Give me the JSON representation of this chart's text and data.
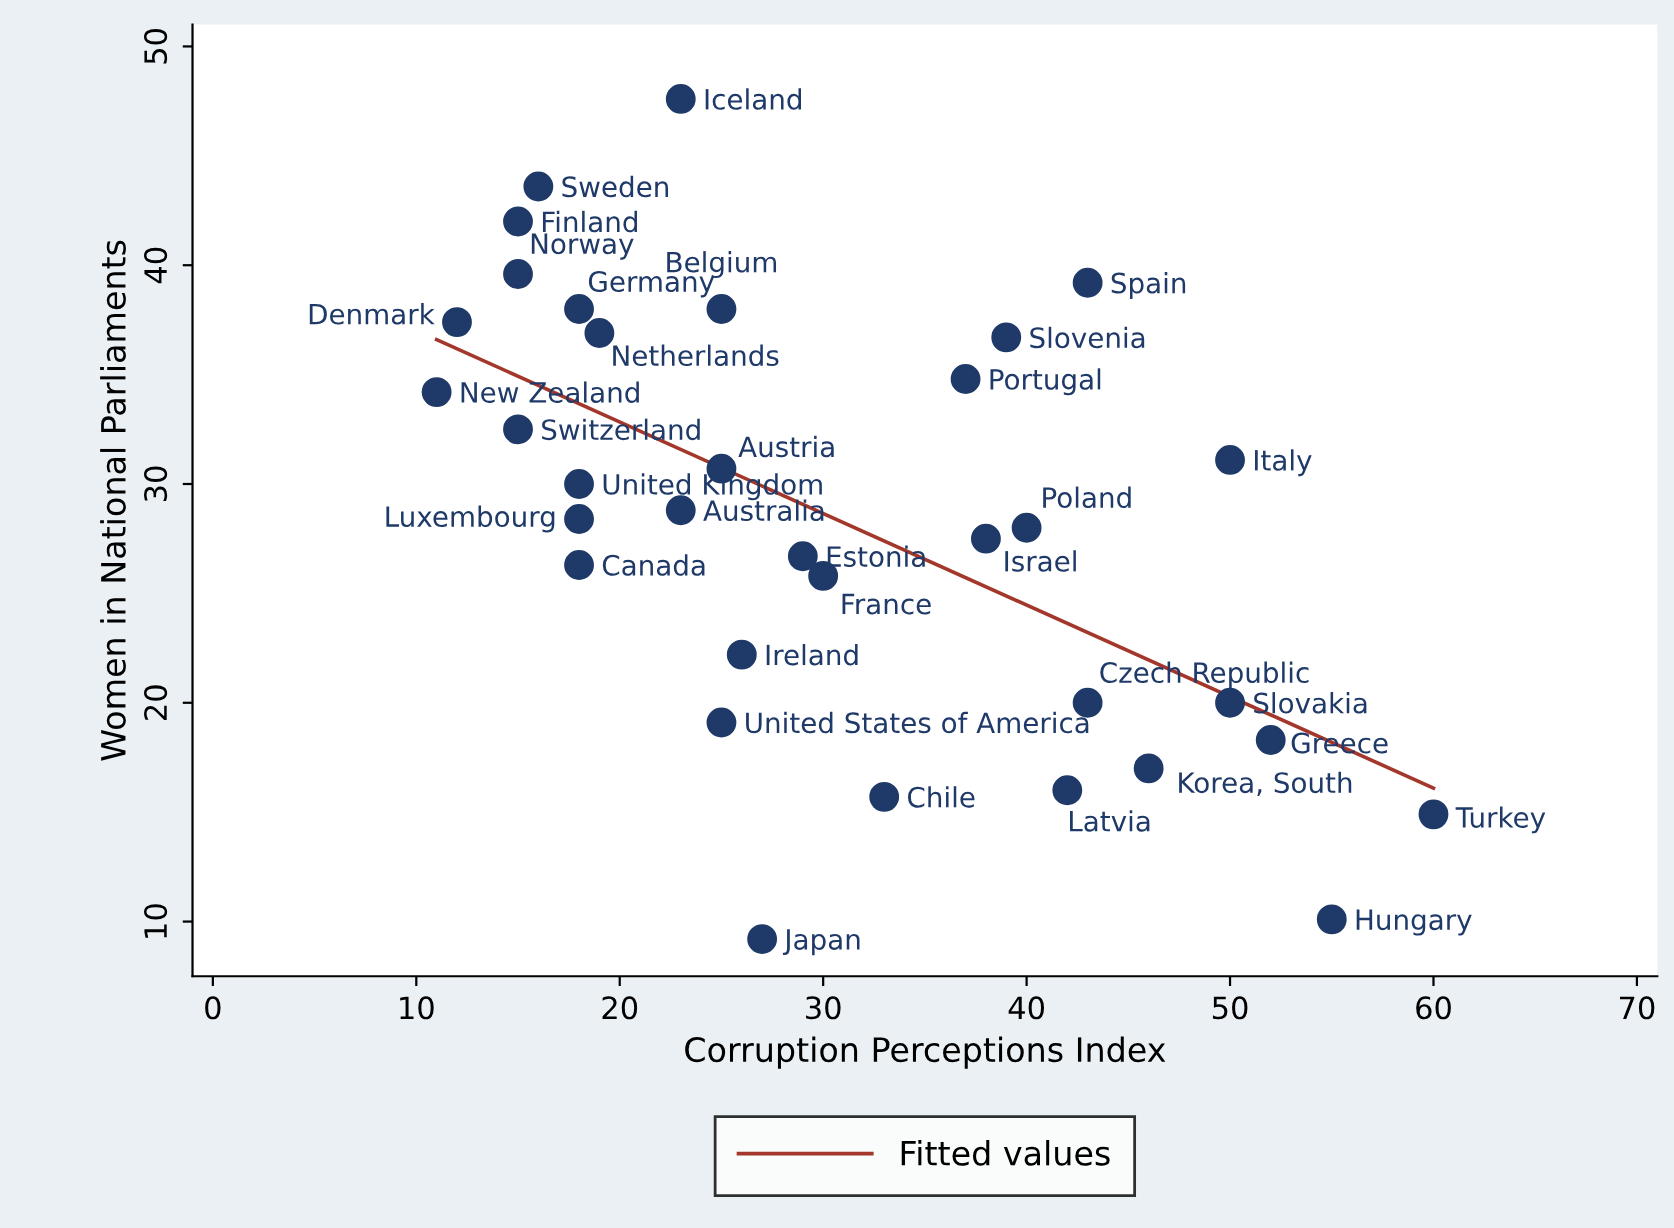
{
  "chart_data": {
    "type": "scatter",
    "xlabel": "Corruption Perceptions Index",
    "ylabel": "Women in National Parliaments",
    "xlim": [
      -1,
      71
    ],
    "xticks": [
      0,
      10,
      20,
      30,
      40,
      50,
      60,
      70
    ],
    "ylim": [
      7.5,
      51
    ],
    "yticks": [
      10,
      20,
      30,
      40,
      50
    ],
    "grid": false,
    "legend": "bottom",
    "marker": "circle",
    "series": [
      {
        "color": "#1f3a68",
        "x": [
          23,
          16,
          15,
          15,
          18,
          19,
          25,
          12,
          11,
          15,
          43,
          39,
          37,
          50,
          25,
          18,
          18,
          23,
          40,
          38,
          18,
          29,
          30,
          26,
          43,
          50,
          52,
          25,
          46,
          42,
          33,
          60,
          55,
          27
        ],
        "values": [
          47.6,
          43.6,
          42.0,
          39.6,
          38.0,
          36.9,
          38.0,
          37.4,
          34.2,
          32.5,
          39.2,
          36.7,
          34.8,
          31.1,
          30.7,
          30.0,
          28.4,
          28.8,
          28.0,
          27.5,
          26.3,
          26.7,
          25.8,
          22.2,
          20.0,
          20.0,
          18.3,
          19.1,
          17.0,
          16.0,
          15.7,
          14.9,
          10.1,
          9.2
        ]
      },
      {
        "type": "line",
        "name": "Fitted values",
        "color": "#a3372b",
        "x": [
          11,
          60
        ],
        "values": [
          36.6,
          16.1
        ],
        "marker": "none"
      }
    ],
    "annotations": [
      {
        "text": "Iceland",
        "x": 23,
        "y": 47.6
      },
      {
        "text": "Sweden",
        "x": 16,
        "y": 43.6
      },
      {
        "text": "Finland",
        "x": 15,
        "y": 42.0
      },
      {
        "text": "Norway",
        "x": 15,
        "y": 39.6
      },
      {
        "text": "Germany",
        "x": 18,
        "y": 38.0
      },
      {
        "text": "Netherlands",
        "x": 19,
        "y": 36.9
      },
      {
        "text": "Belgium",
        "x": 25,
        "y": 38.0
      },
      {
        "text": "Denmark",
        "x": 12,
        "y": 37.4
      },
      {
        "text": "New Zealand",
        "x": 11,
        "y": 34.2
      },
      {
        "text": "Switzerland",
        "x": 15,
        "y": 32.5
      },
      {
        "text": "Spain",
        "x": 43,
        "y": 39.2
      },
      {
        "text": "Slovenia",
        "x": 39,
        "y": 36.7
      },
      {
        "text": "Portugal",
        "x": 37,
        "y": 34.8
      },
      {
        "text": "Italy",
        "x": 50,
        "y": 31.1
      },
      {
        "text": "Austria",
        "x": 25,
        "y": 30.7
      },
      {
        "text": "United Kingdom",
        "x": 18,
        "y": 30.0
      },
      {
        "text": "Luxembourg",
        "x": 18,
        "y": 28.4
      },
      {
        "text": "Australia",
        "x": 23,
        "y": 28.8
      },
      {
        "text": "Poland",
        "x": 40,
        "y": 28.0
      },
      {
        "text": "Israel",
        "x": 38,
        "y": 27.5
      },
      {
        "text": "Canada",
        "x": 18,
        "y": 26.3
      },
      {
        "text": "Estonia",
        "x": 29,
        "y": 26.7
      },
      {
        "text": "France",
        "x": 30,
        "y": 25.8
      },
      {
        "text": "Ireland",
        "x": 26,
        "y": 22.2
      },
      {
        "text": "Czech Republic",
        "x": 43,
        "y": 20.0
      },
      {
        "text": "Slovakia",
        "x": 50,
        "y": 20.0
      },
      {
        "text": "Greece",
        "x": 52,
        "y": 18.3
      },
      {
        "text": "United States of America",
        "x": 25,
        "y": 19.1
      },
      {
        "text": "Korea, South",
        "x": 46,
        "y": 17.0
      },
      {
        "text": "Latvia",
        "x": 42,
        "y": 16.0
      },
      {
        "text": "Chile",
        "x": 33,
        "y": 15.7
      },
      {
        "text": "Turkey",
        "x": 60,
        "y": 14.9
      },
      {
        "text": "Hungary",
        "x": 55,
        "y": 10.1
      },
      {
        "text": "Japan",
        "x": 27,
        "y": 9.2
      }
    ]
  }
}
